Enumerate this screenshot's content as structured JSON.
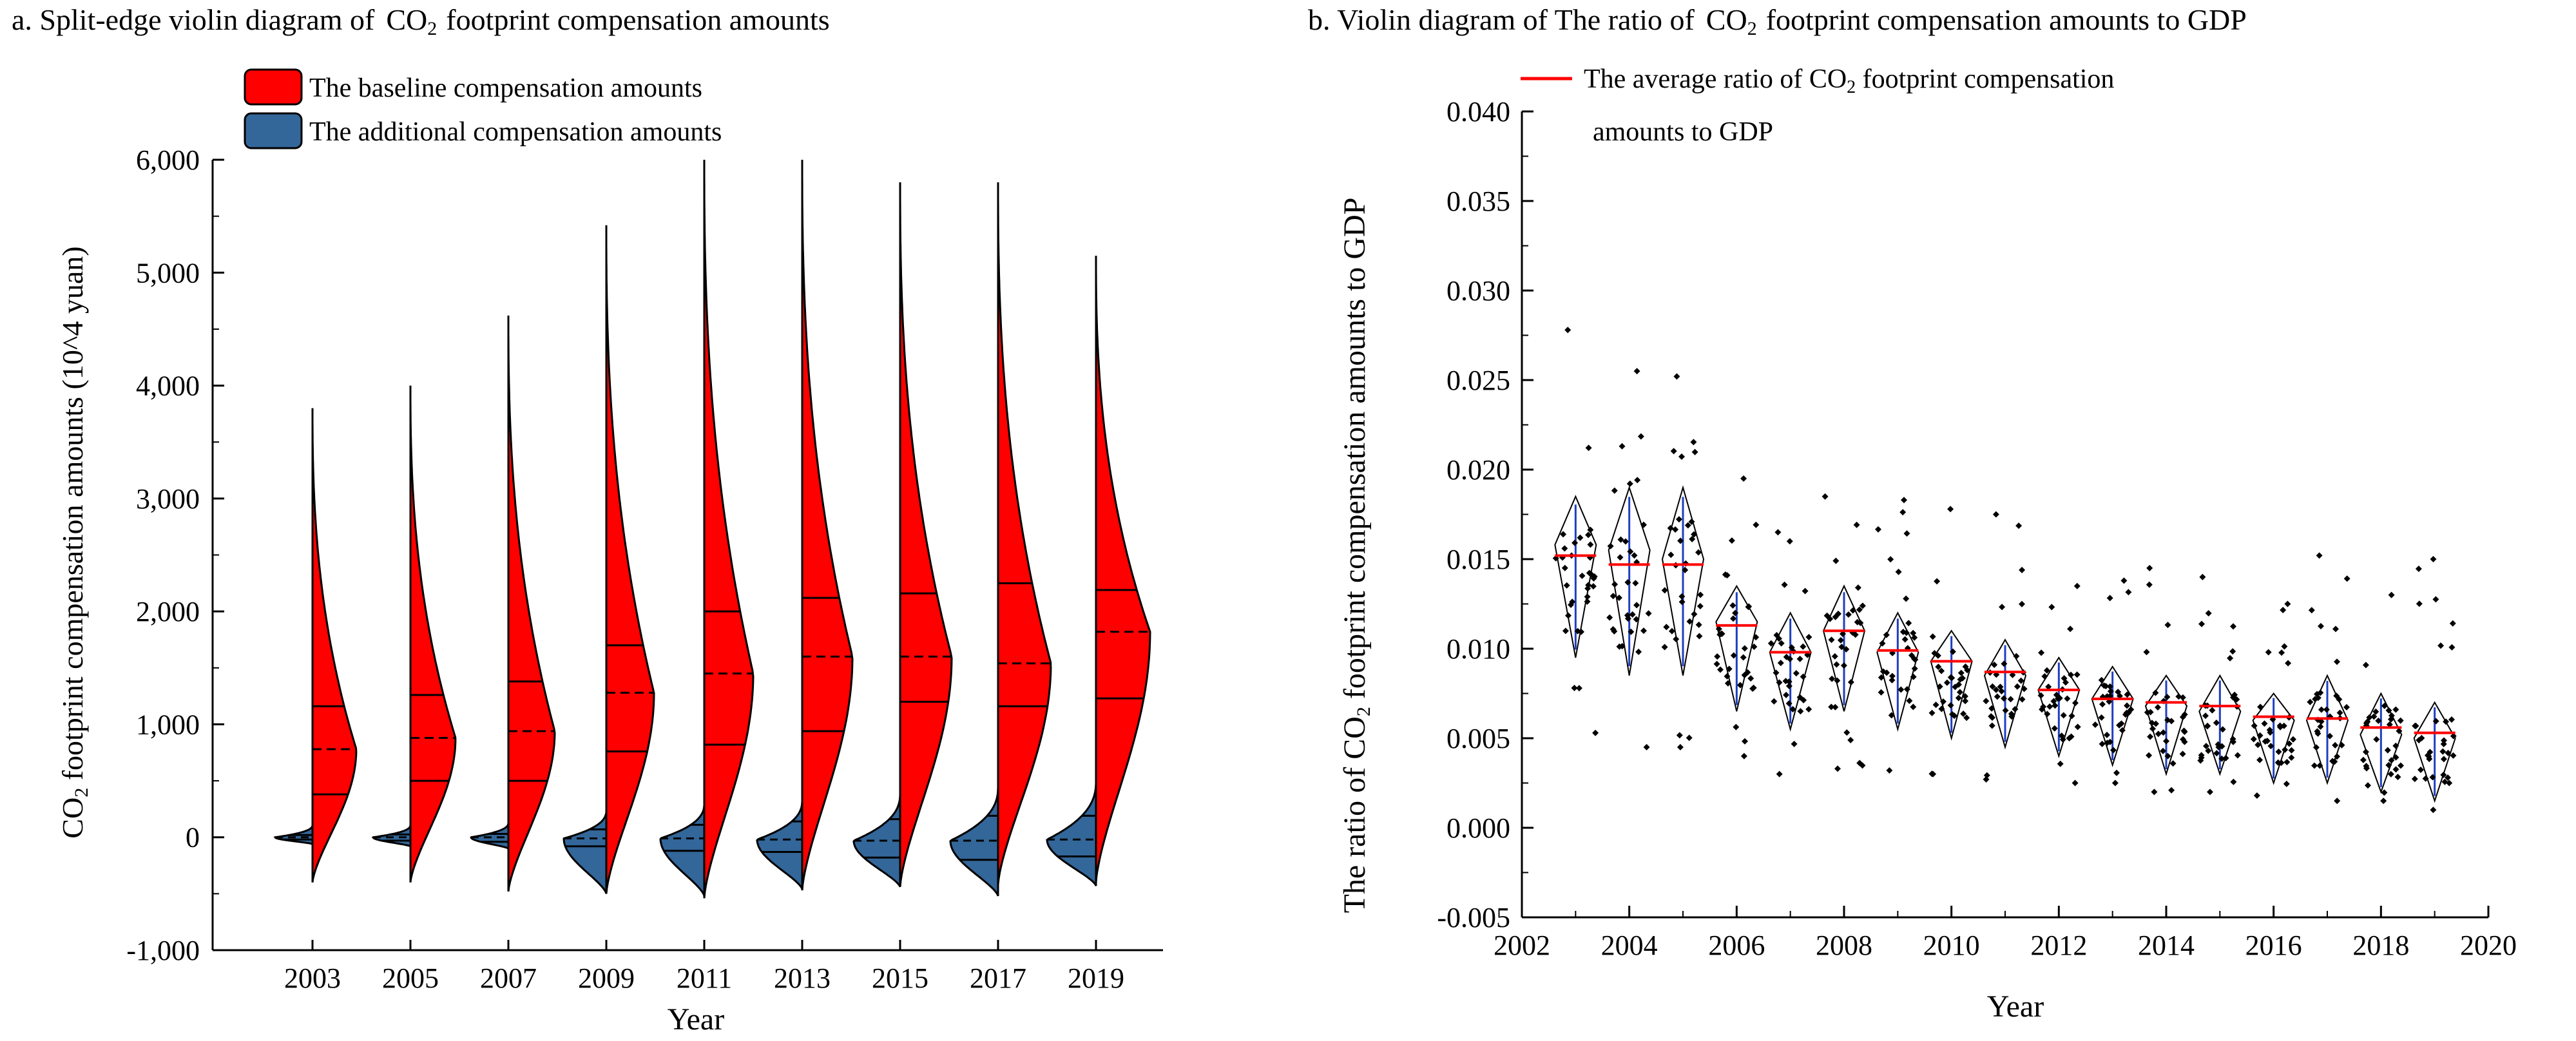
{
  "chart_data": [
    {
      "panel": "a",
      "type": "split-violin",
      "title_prefix": "a. Split-edge violin diagram of",
      "co2": "CO",
      "co2_sub": "2",
      "title_suffix": "footprint compensation amounts",
      "xlabel": "Year",
      "ylabel_prefix": "CO",
      "ylabel_sub": "2",
      "ylabel_suffix": " footprint compensation amounts (10^4 yuan)",
      "ylim": [
        -1000,
        6000
      ],
      "yticks": [
        -1000,
        0,
        1000,
        2000,
        3000,
        4000,
        5000,
        6000
      ],
      "ytick_labels": [
        "-1,000",
        "0",
        "1,000",
        "2,000",
        "3,000",
        "4,000",
        "5,000",
        "6,000"
      ],
      "categories": [
        "2003",
        "2005",
        "2007",
        "2009",
        "2011",
        "2013",
        "2015",
        "2017",
        "2019"
      ],
      "legend": [
        {
          "label": "The baseline compensation amounts",
          "color": "#ff0000"
        },
        {
          "label": "The additional compensation amounts",
          "color": "#336699"
        }
      ],
      "baseline": {
        "min": [
          -400,
          -400,
          -480,
          -500,
          -540,
          -470,
          -440,
          -420,
          -400
        ],
        "max": [
          3800,
          4000,
          4620,
          5420,
          6000,
          6000,
          5800,
          5800,
          5150
        ],
        "q1": [
          380,
          500,
          500,
          760,
          820,
          940,
          1200,
          1160,
          1230
        ],
        "median": [
          780,
          880,
          940,
          1280,
          1450,
          1600,
          1600,
          1540,
          1820
        ],
        "q3": [
          1160,
          1260,
          1380,
          1700,
          2000,
          2120,
          2160,
          2250,
          2190
        ]
      },
      "additional": {
        "min": [
          -60,
          -80,
          -100,
          -500,
          -520,
          -460,
          -440,
          -520,
          -430
        ],
        "max": [
          110,
          110,
          130,
          240,
          300,
          330,
          390,
          450,
          500
        ],
        "q1": [
          -20,
          -30,
          -40,
          -80,
          -120,
          -130,
          -180,
          -200,
          -170
        ],
        "median": [
          0,
          0,
          0,
          -10,
          -10,
          -20,
          -30,
          -30,
          -20
        ],
        "q3": [
          20,
          25,
          30,
          70,
          110,
          140,
          160,
          190,
          190
        ]
      }
    },
    {
      "panel": "b",
      "type": "violin-scatter",
      "title_prefix": "b. Violin diagram of The ratio of",
      "co2": "CO",
      "co2_sub": "2",
      "title_suffix": "footprint compensation amounts to GDP",
      "xlabel": "Year",
      "ylabel_prefix": "The ratio of ",
      "ylabel_co2": "CO",
      "ylabel_sub": "2",
      "ylabel_suffix": " footprint compensation amounts to GDP",
      "xlim": [
        2002,
        2020
      ],
      "xticks": [
        2002,
        2004,
        2006,
        2008,
        2010,
        2012,
        2014,
        2016,
        2018,
        2020
      ],
      "ylim": [
        -0.005,
        0.04
      ],
      "yticks": [
        -0.005,
        0.0,
        0.005,
        0.01,
        0.015,
        0.02,
        0.025,
        0.03,
        0.035,
        0.04
      ],
      "ytick_labels": [
        "-0.005",
        "0.000",
        "0.005",
        "0.010",
        "0.015",
        "0.020",
        "0.025",
        "0.030",
        "0.035",
        "0.040"
      ],
      "legend": [
        {
          "label_line1_prefix": "The average ratio of ",
          "label_line1_co2": "CO",
          "label_line1_sub": "2",
          "label_line1_suffix": " footprint compensation",
          "label_line2": "amounts to GDP",
          "color": "#ff0000"
        }
      ],
      "years": [
        2003,
        2004,
        2005,
        2006,
        2007,
        2008,
        2009,
        2010,
        2011,
        2012,
        2013,
        2014,
        2015,
        2016,
        2017,
        2018,
        2019
      ],
      "mean": [
        0.0152,
        0.0147,
        0.0147,
        0.0113,
        0.0098,
        0.011,
        0.0099,
        0.0093,
        0.0087,
        0.0077,
        0.0072,
        0.007,
        0.0068,
        0.0062,
        0.0061,
        0.0056,
        0.0053
      ],
      "violin_min": [
        0.0095,
        0.0085,
        0.0085,
        0.0065,
        0.0055,
        0.0065,
        0.0055,
        0.005,
        0.0045,
        0.004,
        0.0035,
        0.003,
        0.003,
        0.0025,
        0.0025,
        0.002,
        0.0015
      ],
      "violin_max": [
        0.0185,
        0.019,
        0.019,
        0.0135,
        0.012,
        0.0135,
        0.012,
        0.011,
        0.0105,
        0.0095,
        0.009,
        0.0085,
        0.0085,
        0.0075,
        0.0085,
        0.0075,
        0.007
      ],
      "violin_wide_at": [
        0.0158,
        0.0155,
        0.015,
        0.0115,
        0.0098,
        0.011,
        0.0098,
        0.0093,
        0.0085,
        0.0077,
        0.0072,
        0.0068,
        0.0065,
        0.006,
        0.006,
        0.0052,
        0.005
      ],
      "points_min": [
        0.0053,
        0.0045,
        0.0045,
        0.004,
        0.003,
        0.0033,
        0.0032,
        0.003,
        0.0027,
        0.0025,
        0.0025,
        0.002,
        0.002,
        0.0018,
        0.0015,
        0.0015,
        0.001
      ],
      "points_max": [
        0.0278,
        0.0255,
        0.0252,
        0.0195,
        0.0165,
        0.0185,
        0.0183,
        0.0178,
        0.0175,
        0.0135,
        0.0138,
        0.0145,
        0.014,
        0.0125,
        0.0152,
        0.013,
        0.015
      ]
    }
  ]
}
